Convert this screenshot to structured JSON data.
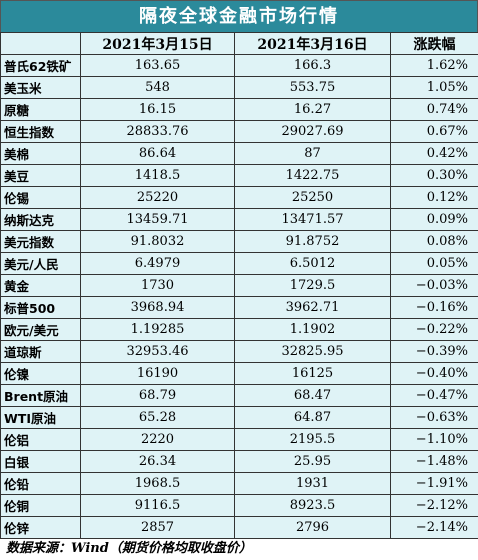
{
  "title": "隔夜全球金融市场行情",
  "headers": [
    "",
    "2021年3月15日",
    "2021年3月16日",
    "涨跌幅"
  ],
  "rows": [
    [
      "普氏62铁矿",
      "163.65",
      "166.3",
      "1.62%"
    ],
    [
      "美玉米",
      "548",
      "553.75",
      "1.05%"
    ],
    [
      "原糖",
      "16.15",
      "16.27",
      "0.74%"
    ],
    [
      "恒生指数",
      "28833.76",
      "29027.69",
      "0.67%"
    ],
    [
      "美棉",
      "86.64",
      "87",
      "0.42%"
    ],
    [
      "美豆",
      "1418.5",
      "1422.75",
      "0.30%"
    ],
    [
      "伦锡",
      "25220",
      "25250",
      "0.12%"
    ],
    [
      "纳斯达克",
      "13459.71",
      "13471.57",
      "0.09%"
    ],
    [
      "美元指数",
      "91.8032",
      "91.8752",
      "0.08%"
    ],
    [
      "美元/人民",
      "6.4979",
      "6.5012",
      "0.05%"
    ],
    [
      "黄金",
      "1730",
      "1729.5",
      "−0.03%"
    ],
    [
      "标普500",
      "3968.94",
      "3962.71",
      "−0.16%"
    ],
    [
      "欧元/美元",
      "1.19285",
      "1.1902",
      "−0.22%"
    ],
    [
      "道琼斯",
      "32953.46",
      "32825.95",
      "−0.39%"
    ],
    [
      "伦镍",
      "16190",
      "16125",
      "−0.40%"
    ],
    [
      "Brent原油",
      "68.79",
      "68.47",
      "−0.47%"
    ],
    [
      "WTI原油",
      "65.28",
      "64.87",
      "−0.63%"
    ],
    [
      "伦铝",
      "2220",
      "2195.5",
      "−1.10%"
    ],
    [
      "白银",
      "26.34",
      "25.95",
      "−1.48%"
    ],
    [
      "伦铅",
      "1968.5",
      "1931",
      "−1.91%"
    ],
    [
      "伦铜",
      "9116.5",
      "8923.5",
      "−2.12%"
    ],
    [
      "伦锌",
      "2857",
      "2796",
      "−2.14%"
    ]
  ],
  "source": "数据来源：Wind（期货价格均取收盘价）",
  "colors": {
    "title_bg": "#2b8a9b",
    "cell_bg": "#dff3f6"
  }
}
